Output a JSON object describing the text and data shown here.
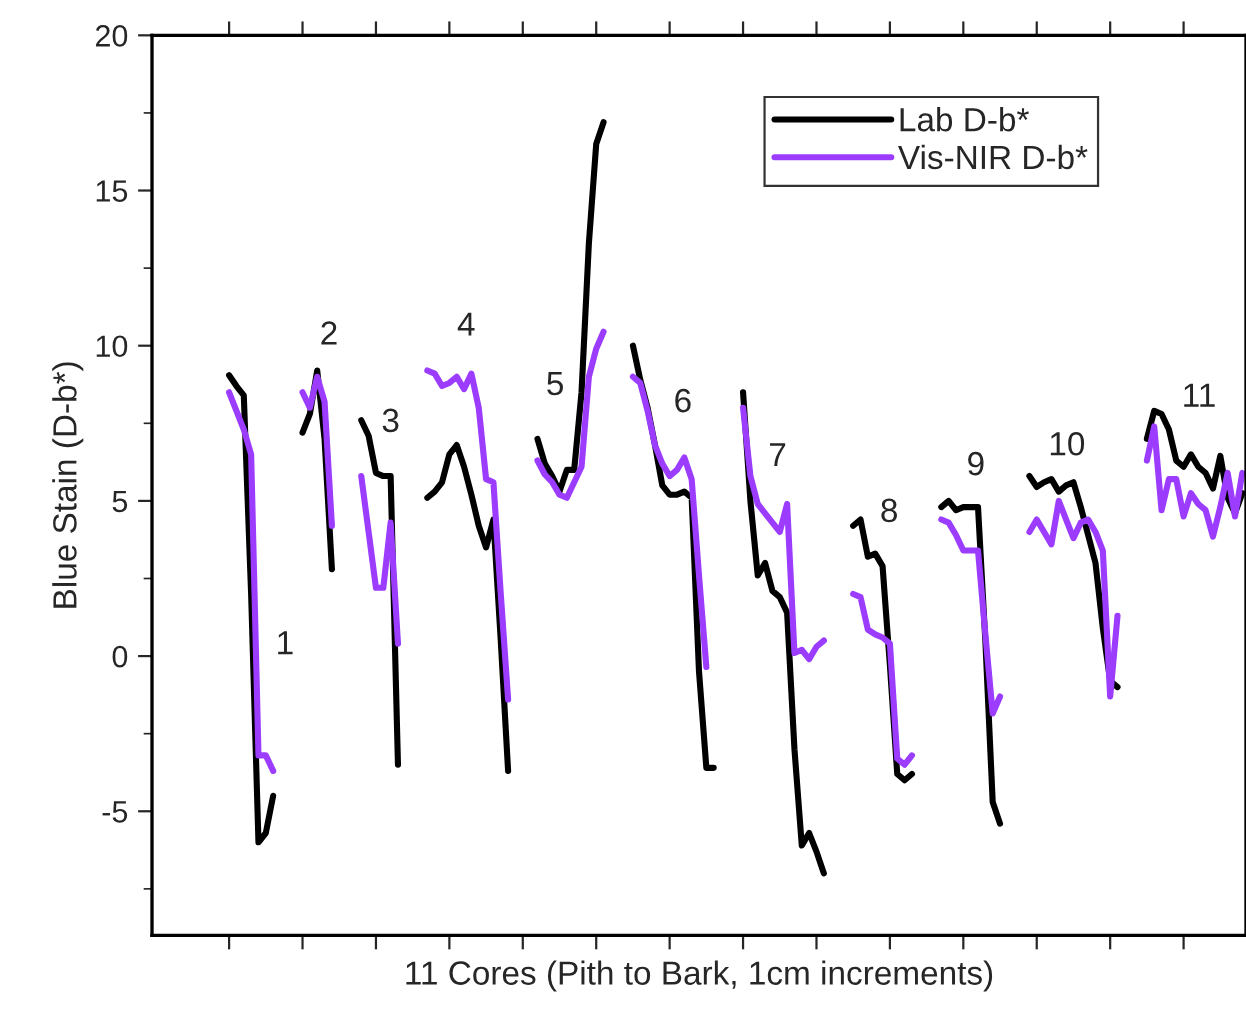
{
  "chart_data": {
    "type": "line",
    "ylabel": "Blue Stain (D-b*)",
    "xlabel": "11 Cores (Pith to Bark, 1cm increments)",
    "categories": [
      null,
      null,
      null,
      null,
      null,
      null,
      null,
      null,
      null,
      null,
      null,
      null,
      null,
      null,
      null,
      null,
      null,
      null,
      null,
      null,
      null,
      null,
      null,
      null,
      null,
      null,
      null,
      null,
      null,
      null,
      null,
      null,
      null,
      null,
      null,
      null,
      null,
      null,
      null,
      null,
      null,
      null,
      null,
      null,
      null,
      null,
      null,
      null,
      null,
      null,
      null,
      null,
      null,
      null,
      null,
      null,
      null,
      null,
      null,
      null,
      null,
      null,
      null,
      null,
      null,
      null,
      null,
      null,
      null,
      null,
      null,
      null,
      null,
      null,
      null,
      null,
      null,
      null,
      null,
      null,
      null,
      null,
      null,
      null,
      null,
      null,
      null,
      null,
      null,
      null,
      null,
      null,
      null,
      null,
      null,
      null,
      null,
      null,
      null,
      null,
      null,
      null,
      null,
      null,
      null,
      null,
      null,
      null,
      null,
      null,
      null,
      null,
      null,
      null,
      null,
      null,
      null,
      null,
      null,
      null,
      null,
      null,
      null,
      null,
      null,
      null,
      null,
      null,
      null,
      null,
      null,
      null,
      null,
      null,
      null,
      null,
      null,
      null,
      null,
      null,
      null,
      null,
      null,
      null,
      null,
      null,
      null,
      null,
      null
    ],
    "series": [
      {
        "name": "Lab D-b*",
        "color": "#000000",
        "values": [
          null,
          null,
          null,
          null,
          null,
          null,
          null,
          null,
          null,
          null,
          9.05,
          8.7,
          8.4,
          2.0,
          -6.0,
          -5.7,
          -4.5,
          null,
          null,
          null,
          7.2,
          7.8,
          9.2,
          7.0,
          2.8,
          null,
          null,
          null,
          7.6,
          7.1,
          5.9,
          5.8,
          5.8,
          -3.5,
          null,
          null,
          null,
          5.1,
          5.3,
          5.6,
          6.5,
          6.8,
          6.1,
          5.2,
          4.2,
          3.5,
          4.4,
          0.5,
          -3.7,
          null,
          null,
          null,
          7.0,
          6.2,
          5.8,
          5.3,
          6.0,
          6.0,
          8.5,
          13.3,
          16.5,
          17.2,
          null,
          null,
          null,
          10.0,
          8.9,
          8.0,
          6.8,
          5.5,
          5.2,
          5.2,
          5.3,
          5.1,
          -0.5,
          -3.6,
          -3.6,
          null,
          null,
          null,
          8.5,
          5.0,
          2.6,
          3.0,
          2.1,
          1.9,
          1.4,
          -3.0,
          -6.1,
          -5.7,
          -6.3,
          -7.0,
          null,
          null,
          null,
          4.2,
          4.4,
          3.2,
          3.3,
          2.9,
          -0.3,
          -3.8,
          -4.0,
          -3.8,
          null,
          null,
          null,
          4.8,
          5.0,
          4.7,
          4.8,
          4.8,
          4.8,
          0.5,
          -4.7,
          -5.4,
          null,
          null,
          null,
          5.8,
          5.45,
          5.6,
          5.7,
          5.3,
          5.5,
          5.6,
          4.8,
          3.9,
          3.0,
          0.9,
          -0.8,
          -1.0,
          null,
          null,
          null,
          7.0,
          7.9,
          7.8,
          7.3,
          6.3,
          6.1,
          6.5,
          6.1,
          5.9,
          5.4,
          6.45,
          5.1,
          4.6,
          5.25
        ]
      },
      {
        "name": "Vis-NIR D-b*",
        "color": "#9b3cff",
        "values": [
          null,
          null,
          null,
          null,
          null,
          null,
          null,
          null,
          null,
          null,
          8.5,
          7.9,
          7.3,
          6.5,
          -3.2,
          -3.2,
          -3.7,
          null,
          null,
          null,
          8.5,
          8.0,
          9.0,
          8.2,
          4.2,
          null,
          null,
          null,
          5.8,
          4.0,
          2.2,
          2.2,
          4.3,
          0.4,
          null,
          null,
          null,
          9.2,
          9.1,
          8.7,
          8.8,
          9.0,
          8.6,
          9.1,
          8.0,
          5.7,
          5.6,
          2.0,
          -1.4,
          null,
          null,
          null,
          6.3,
          5.85,
          5.6,
          5.2,
          5.1,
          5.6,
          6.1,
          9.0,
          9.9,
          10.45,
          null,
          null,
          null,
          9.0,
          8.8,
          7.9,
          6.8,
          6.2,
          5.8,
          6.0,
          6.4,
          5.7,
          2.6,
          -0.35,
          null,
          null,
          null,
          null,
          8.0,
          5.8,
          4.9,
          4.6,
          4.3,
          4.0,
          4.9,
          0.1,
          0.2,
          -0.1,
          0.3,
          0.5,
          null,
          null,
          null,
          2.0,
          1.9,
          0.85,
          0.7,
          0.6,
          0.4,
          -3.3,
          -3.5,
          -3.2,
          null,
          null,
          null,
          4.4,
          4.3,
          3.9,
          3.4,
          3.4,
          3.4,
          0.7,
          -1.85,
          -1.3,
          null,
          null,
          null,
          4.0,
          4.4,
          4.0,
          3.6,
          5.0,
          4.4,
          3.8,
          4.3,
          4.4,
          4.0,
          3.4,
          -1.3,
          1.3,
          null,
          null,
          null,
          6.3,
          7.4,
          4.7,
          5.7,
          5.7,
          4.5,
          5.25,
          4.9,
          4.7,
          3.85,
          4.8,
          5.9,
          4.5,
          5.9
        ]
      }
    ],
    "ylim": [
      -9,
      20
    ],
    "yticks": [
      -5,
      0,
      5,
      10,
      15,
      20
    ],
    "tick_labels": "y",
    "grid": false,
    "legend": "top right",
    "marker": "none",
    "line_style": "solid",
    "annotations": [
      "1",
      "2",
      "3",
      "4",
      "5",
      "6",
      "7",
      "8",
      "9",
      "10",
      "11"
    ]
  }
}
